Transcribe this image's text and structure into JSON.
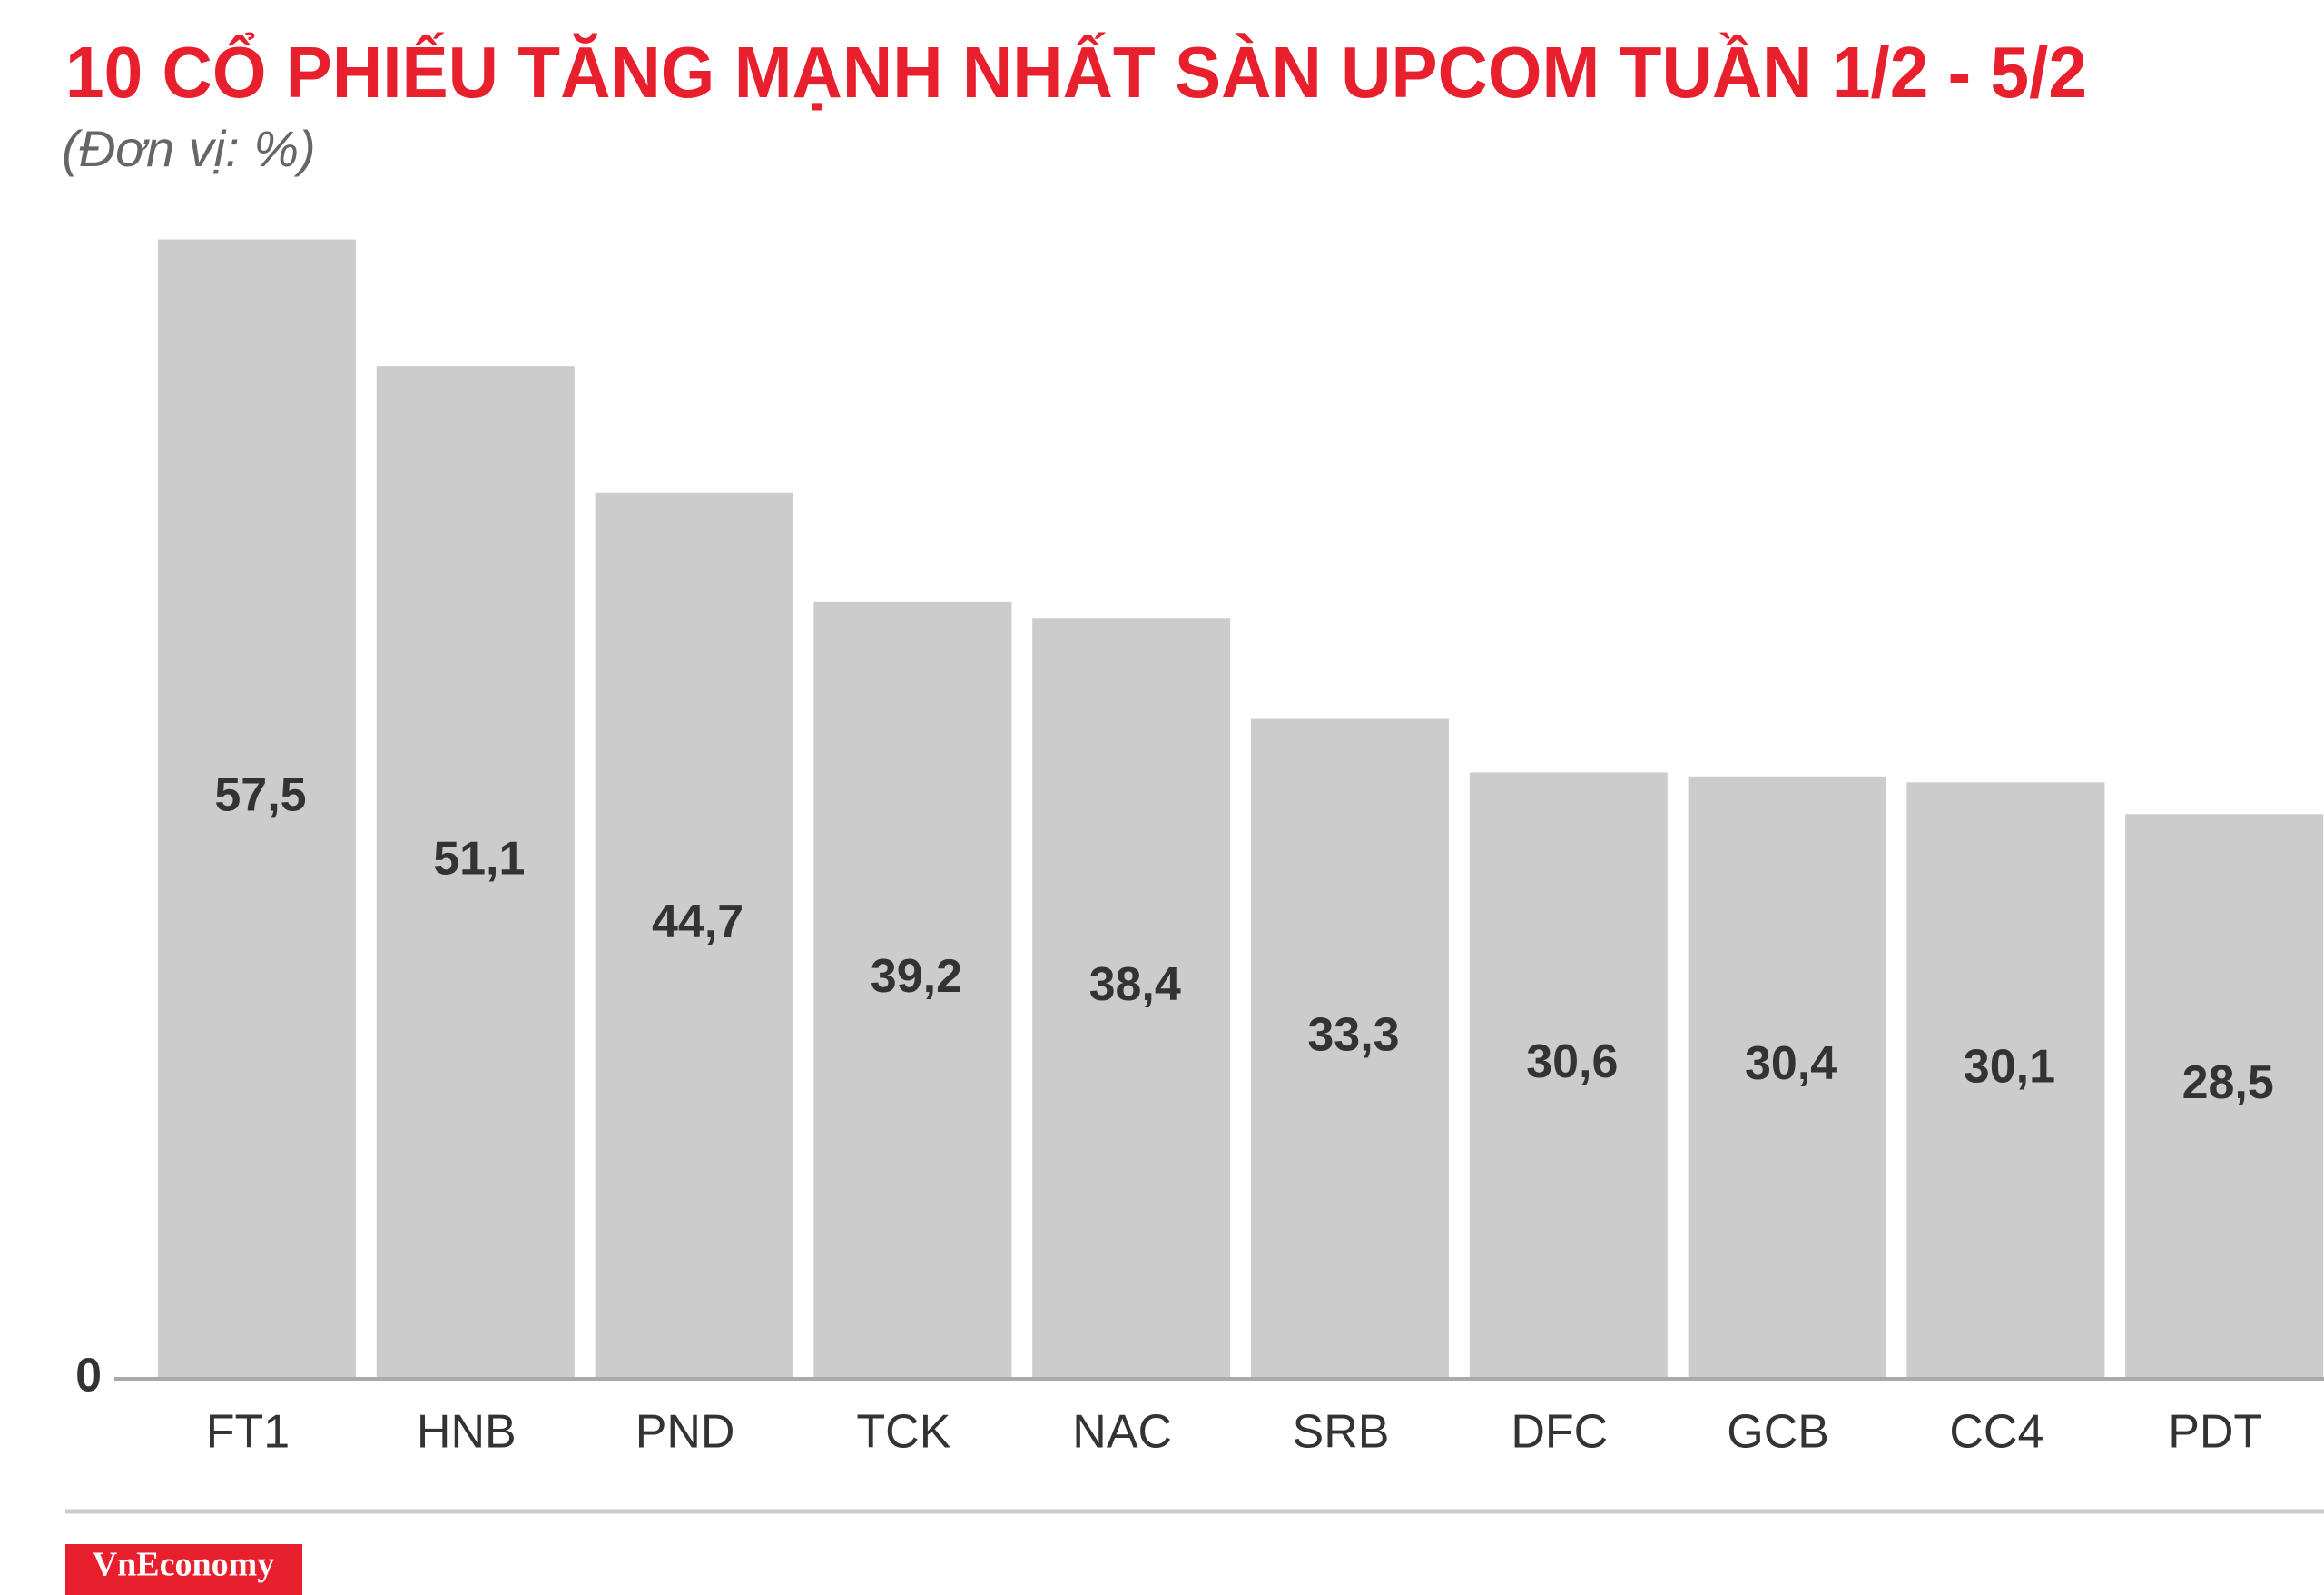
{
  "chart_data": {
    "type": "bar",
    "title": "10 CỔ PHIẾU TĂNG MẠNH NHẤT SÀN UPCOM TUẦN 1/2 - 5/2",
    "subtitle": "(Đơn vị: %)",
    "categories": [
      "FT1",
      "HNB",
      "PND",
      "TCK",
      "NAC",
      "SRB",
      "DFC",
      "GCB",
      "CC4",
      "PDT"
    ],
    "values": [
      57.5,
      51.1,
      44.7,
      39.2,
      38.4,
      33.3,
      30.6,
      30.4,
      30.1,
      28.5
    ],
    "value_labels": [
      "57,5",
      "51,1",
      "44,7",
      "39,2",
      "38,4",
      "33,3",
      "30,6",
      "30,4",
      "30,1",
      "28,5"
    ],
    "color": "#cccccc",
    "ylim": [
      0,
      60
    ],
    "yticks": [
      0
    ],
    "grid": false
  },
  "footer": {
    "brand": "VnEconomy"
  }
}
